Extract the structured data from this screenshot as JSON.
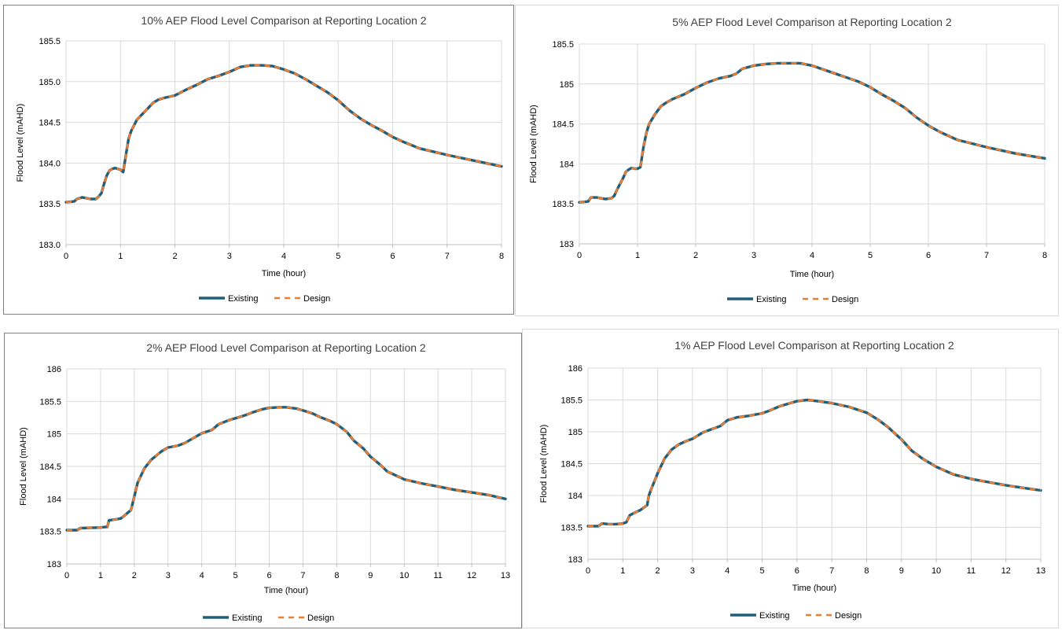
{
  "colors": {
    "existing": "#1f5f7a",
    "design": "#ed7d31",
    "grid": "#d9d9d9"
  },
  "chart_data": [
    {
      "type": "line",
      "title": "10% AEP Flood Level Comparison at Reporting Location 2",
      "xlabel": "Time (hour)",
      "ylabel": "Flood Level (mAHD)",
      "xlim": [
        0,
        8
      ],
      "ylim": [
        183.0,
        185.5
      ],
      "xticks": [
        "0",
        "1",
        "2",
        "3",
        "4",
        "5",
        "6",
        "7",
        "8"
      ],
      "yticks": [
        "183.0",
        "183.5",
        "184.0",
        "184.5",
        "185.0",
        "185.5"
      ],
      "legend_position": "bottom",
      "series": [
        {
          "name": "Existing",
          "style": "solid",
          "x": [
            0,
            0.15,
            0.2,
            0.3,
            0.45,
            0.55,
            0.6,
            0.65,
            0.7,
            0.75,
            0.8,
            0.85,
            0.9,
            0.95,
            1.0,
            1.05,
            1.1,
            1.15,
            1.2,
            1.3,
            1.4,
            1.5,
            1.6,
            1.7,
            1.8,
            2.0,
            2.2,
            2.4,
            2.6,
            2.8,
            3.0,
            3.2,
            3.4,
            3.6,
            3.8,
            4.0,
            4.2,
            4.4,
            4.6,
            4.8,
            5.0,
            5.2,
            5.4,
            5.6,
            5.8,
            6.0,
            6.2,
            6.5,
            7.0,
            7.5,
            8.0
          ],
          "y": [
            183.52,
            183.53,
            183.56,
            183.58,
            183.56,
            183.56,
            183.59,
            183.63,
            183.75,
            183.85,
            183.91,
            183.93,
            183.94,
            183.93,
            183.92,
            183.89,
            184.1,
            184.3,
            184.4,
            184.53,
            184.6,
            184.67,
            184.74,
            184.78,
            184.8,
            184.83,
            184.9,
            184.96,
            185.03,
            185.07,
            185.12,
            185.18,
            185.2,
            185.2,
            185.19,
            185.15,
            185.1,
            185.03,
            184.95,
            184.87,
            184.77,
            184.65,
            184.55,
            184.47,
            184.4,
            184.32,
            184.26,
            184.18,
            184.1,
            184.03,
            183.96
          ]
        },
        {
          "name": "Design",
          "style": "dashed",
          "x": [
            0,
            0.15,
            0.2,
            0.3,
            0.45,
            0.55,
            0.6,
            0.65,
            0.7,
            0.75,
            0.8,
            0.85,
            0.9,
            0.95,
            1.0,
            1.05,
            1.1,
            1.15,
            1.2,
            1.3,
            1.4,
            1.5,
            1.6,
            1.7,
            1.8,
            2.0,
            2.2,
            2.4,
            2.6,
            2.8,
            3.0,
            3.2,
            3.4,
            3.6,
            3.8,
            4.0,
            4.2,
            4.4,
            4.6,
            4.8,
            5.0,
            5.2,
            5.4,
            5.6,
            5.8,
            6.0,
            6.2,
            6.5,
            7.0,
            7.5,
            8.0
          ],
          "y": [
            183.52,
            183.53,
            183.56,
            183.58,
            183.56,
            183.56,
            183.59,
            183.63,
            183.75,
            183.85,
            183.91,
            183.93,
            183.94,
            183.93,
            183.92,
            183.89,
            184.1,
            184.3,
            184.4,
            184.53,
            184.6,
            184.67,
            184.74,
            184.78,
            184.8,
            184.83,
            184.9,
            184.96,
            185.03,
            185.07,
            185.12,
            185.18,
            185.2,
            185.2,
            185.19,
            185.15,
            185.1,
            185.03,
            184.95,
            184.87,
            184.77,
            184.65,
            184.55,
            184.47,
            184.4,
            184.32,
            184.26,
            184.18,
            184.1,
            184.03,
            183.96
          ]
        }
      ]
    },
    {
      "type": "line",
      "title": "5% AEP Flood Level Comparison at Reporting Location 2",
      "xlabel": "Time (hour)",
      "ylabel": "Flood Level (mAHD)",
      "xlim": [
        0,
        8
      ],
      "ylim": [
        183,
        185.5
      ],
      "xticks": [
        "0",
        "1",
        "2",
        "3",
        "4",
        "5",
        "6",
        "7",
        "8"
      ],
      "yticks": [
        "183",
        "183.5",
        "184",
        "184.5",
        "185",
        "185.5"
      ],
      "legend_position": "bottom",
      "series": [
        {
          "name": "Existing",
          "style": "solid",
          "x": [
            0,
            0.15,
            0.2,
            0.3,
            0.45,
            0.55,
            0.6,
            0.65,
            0.7,
            0.75,
            0.8,
            0.85,
            0.9,
            0.95,
            1.0,
            1.05,
            1.1,
            1.15,
            1.2,
            1.3,
            1.4,
            1.5,
            1.6,
            1.8,
            2.0,
            2.2,
            2.4,
            2.6,
            2.7,
            2.8,
            3.0,
            3.2,
            3.4,
            3.6,
            3.8,
            4.0,
            4.2,
            4.4,
            4.6,
            4.8,
            5.0,
            5.2,
            5.4,
            5.6,
            5.8,
            6.0,
            6.2,
            6.5,
            7.0,
            7.5,
            8.0
          ],
          "y": [
            183.52,
            183.53,
            183.58,
            183.58,
            183.56,
            183.57,
            183.6,
            183.68,
            183.75,
            183.82,
            183.9,
            183.93,
            183.95,
            183.94,
            183.94,
            183.96,
            184.2,
            184.38,
            184.5,
            184.62,
            184.72,
            184.77,
            184.81,
            184.87,
            184.95,
            185.02,
            185.07,
            185.1,
            185.13,
            185.19,
            185.23,
            185.25,
            185.26,
            185.26,
            185.26,
            185.23,
            185.18,
            185.13,
            185.08,
            185.03,
            184.96,
            184.87,
            184.79,
            184.7,
            184.58,
            184.48,
            184.4,
            184.3,
            184.21,
            184.13,
            184.07
          ]
        },
        {
          "name": "Design",
          "style": "dashed",
          "x": [
            0,
            0.15,
            0.2,
            0.3,
            0.45,
            0.55,
            0.6,
            0.65,
            0.7,
            0.75,
            0.8,
            0.85,
            0.9,
            0.95,
            1.0,
            1.05,
            1.1,
            1.15,
            1.2,
            1.3,
            1.4,
            1.5,
            1.6,
            1.8,
            2.0,
            2.2,
            2.4,
            2.6,
            2.7,
            2.8,
            3.0,
            3.2,
            3.4,
            3.6,
            3.8,
            4.0,
            4.2,
            4.4,
            4.6,
            4.8,
            5.0,
            5.2,
            5.4,
            5.6,
            5.8,
            6.0,
            6.2,
            6.5,
            7.0,
            7.5,
            8.0
          ],
          "y": [
            183.52,
            183.53,
            183.58,
            183.58,
            183.56,
            183.57,
            183.6,
            183.68,
            183.75,
            183.82,
            183.9,
            183.93,
            183.95,
            183.94,
            183.94,
            183.96,
            184.2,
            184.38,
            184.5,
            184.62,
            184.72,
            184.77,
            184.81,
            184.87,
            184.95,
            185.02,
            185.07,
            185.1,
            185.13,
            185.19,
            185.23,
            185.25,
            185.26,
            185.26,
            185.26,
            185.23,
            185.18,
            185.13,
            185.08,
            185.03,
            184.96,
            184.87,
            184.79,
            184.7,
            184.58,
            184.48,
            184.4,
            184.3,
            184.21,
            184.13,
            184.07
          ]
        }
      ]
    },
    {
      "type": "line",
      "title": "2% AEP Flood Level Comparison at Reporting Location 2",
      "xlabel": "Time (hour)",
      "ylabel": "Flood Level (mAHD)",
      "xlim": [
        0,
        13
      ],
      "ylim": [
        183,
        186
      ],
      "xticks": [
        "0",
        "1",
        "2",
        "3",
        "4",
        "5",
        "6",
        "7",
        "8",
        "9",
        "10",
        "11",
        "12",
        "13"
      ],
      "yticks": [
        "183",
        "183.5",
        "184",
        "184.5",
        "185",
        "185.5",
        "186"
      ],
      "legend_position": "bottom",
      "series": [
        {
          "name": "Existing",
          "style": "solid",
          "x": [
            0,
            0.3,
            0.4,
            1.0,
            1.15,
            1.2,
            1.25,
            1.5,
            1.6,
            1.7,
            1.9,
            1.95,
            2.1,
            2.3,
            2.5,
            2.8,
            3.0,
            3.3,
            3.5,
            3.8,
            4.0,
            4.3,
            4.5,
            4.8,
            5.0,
            5.3,
            5.5,
            5.8,
            6.0,
            6.3,
            6.5,
            6.8,
            7.0,
            7.3,
            7.5,
            7.8,
            8.0,
            8.3,
            8.5,
            8.8,
            9.0,
            9.3,
            9.5,
            9.8,
            10.0,
            10.5,
            11.0,
            11.5,
            12.0,
            12.5,
            13.0
          ],
          "y": [
            183.52,
            183.52,
            183.55,
            183.56,
            183.57,
            183.57,
            183.67,
            183.69,
            183.7,
            183.74,
            183.83,
            183.93,
            184.25,
            184.47,
            184.6,
            184.73,
            184.79,
            184.82,
            184.86,
            184.95,
            185.01,
            185.06,
            185.15,
            185.21,
            185.24,
            185.29,
            185.33,
            185.38,
            185.4,
            185.41,
            185.41,
            185.39,
            185.36,
            185.31,
            185.26,
            185.2,
            185.15,
            185.03,
            184.9,
            184.77,
            184.65,
            184.52,
            184.42,
            184.35,
            184.3,
            184.24,
            184.19,
            184.14,
            184.1,
            184.06,
            184.0
          ]
        },
        {
          "name": "Design",
          "style": "dashed",
          "x": [
            0,
            0.3,
            0.4,
            1.0,
            1.15,
            1.2,
            1.25,
            1.5,
            1.6,
            1.7,
            1.9,
            1.95,
            2.1,
            2.3,
            2.5,
            2.8,
            3.0,
            3.3,
            3.5,
            3.8,
            4.0,
            4.3,
            4.5,
            4.8,
            5.0,
            5.3,
            5.5,
            5.8,
            6.0,
            6.3,
            6.5,
            6.8,
            7.0,
            7.3,
            7.5,
            7.8,
            8.0,
            8.3,
            8.5,
            8.8,
            9.0,
            9.3,
            9.5,
            9.8,
            10.0,
            10.5,
            11.0,
            11.5,
            12.0,
            12.5,
            13.0
          ],
          "y": [
            183.52,
            183.52,
            183.55,
            183.56,
            183.57,
            183.57,
            183.67,
            183.69,
            183.7,
            183.74,
            183.83,
            183.93,
            184.25,
            184.47,
            184.6,
            184.73,
            184.79,
            184.82,
            184.86,
            184.95,
            185.01,
            185.06,
            185.15,
            185.21,
            185.24,
            185.29,
            185.33,
            185.38,
            185.4,
            185.41,
            185.41,
            185.39,
            185.36,
            185.31,
            185.26,
            185.2,
            185.15,
            185.03,
            184.9,
            184.77,
            184.65,
            184.52,
            184.42,
            184.35,
            184.3,
            184.24,
            184.19,
            184.14,
            184.1,
            184.06,
            184.0
          ]
        }
      ]
    },
    {
      "type": "line",
      "title": "1% AEP Flood Level Comparison at Reporting Location 2",
      "xlabel": "Time (hour)",
      "ylabel": "Flood Level (mAHD)",
      "xlim": [
        0,
        13
      ],
      "ylim": [
        183,
        186
      ],
      "xticks": [
        "0",
        "1",
        "2",
        "3",
        "4",
        "5",
        "6",
        "7",
        "8",
        "9",
        "10",
        "11",
        "12",
        "13"
      ],
      "yticks": [
        "183",
        "183.5",
        "184",
        "184.5",
        "185",
        "185.5",
        "186"
      ],
      "legend_position": "bottom",
      "series": [
        {
          "name": "Existing",
          "style": "solid",
          "x": [
            0,
            0.3,
            0.4,
            0.6,
            0.8,
            1.0,
            1.1,
            1.2,
            1.3,
            1.5,
            1.7,
            1.75,
            1.8,
            2.0,
            2.2,
            2.4,
            2.6,
            2.8,
            3.0,
            3.3,
            3.6,
            3.8,
            4.0,
            4.3,
            4.6,
            5.0,
            5.2,
            5.5,
            5.8,
            6.0,
            6.3,
            6.6,
            7.0,
            7.5,
            8.0,
            8.3,
            8.6,
            9.0,
            9.3,
            9.6,
            10.0,
            10.5,
            11.0,
            11.5,
            12.0,
            12.5,
            13.0
          ],
          "y": [
            183.52,
            183.52,
            183.56,
            183.55,
            183.55,
            183.56,
            183.58,
            183.69,
            183.72,
            183.77,
            183.85,
            184.0,
            184.08,
            184.35,
            184.58,
            184.72,
            184.8,
            184.85,
            184.89,
            184.99,
            185.05,
            185.09,
            185.18,
            185.23,
            185.25,
            185.29,
            185.33,
            185.4,
            185.45,
            185.48,
            185.5,
            185.48,
            185.45,
            185.39,
            185.3,
            185.2,
            185.08,
            184.88,
            184.7,
            184.58,
            184.45,
            184.33,
            184.26,
            184.21,
            184.16,
            184.12,
            184.08
          ]
        },
        {
          "name": "Design",
          "style": "dashed",
          "x": [
            0,
            0.3,
            0.4,
            0.6,
            0.8,
            1.0,
            1.1,
            1.2,
            1.3,
            1.5,
            1.7,
            1.75,
            1.8,
            2.0,
            2.2,
            2.4,
            2.6,
            2.8,
            3.0,
            3.3,
            3.6,
            3.8,
            4.0,
            4.3,
            4.6,
            5.0,
            5.2,
            5.5,
            5.8,
            6.0,
            6.3,
            6.6,
            7.0,
            7.5,
            8.0,
            8.3,
            8.6,
            9.0,
            9.3,
            9.6,
            10.0,
            10.5,
            11.0,
            11.5,
            12.0,
            12.5,
            13.0
          ],
          "y": [
            183.52,
            183.52,
            183.56,
            183.55,
            183.55,
            183.56,
            183.58,
            183.69,
            183.72,
            183.77,
            183.85,
            184.0,
            184.08,
            184.35,
            184.58,
            184.72,
            184.8,
            184.85,
            184.89,
            184.99,
            185.05,
            185.09,
            185.18,
            185.23,
            185.25,
            185.29,
            185.33,
            185.4,
            185.45,
            185.48,
            185.5,
            185.48,
            185.45,
            185.39,
            185.3,
            185.2,
            185.08,
            184.88,
            184.7,
            184.58,
            184.45,
            184.33,
            184.26,
            184.21,
            184.16,
            184.12,
            184.08
          ]
        }
      ]
    }
  ]
}
